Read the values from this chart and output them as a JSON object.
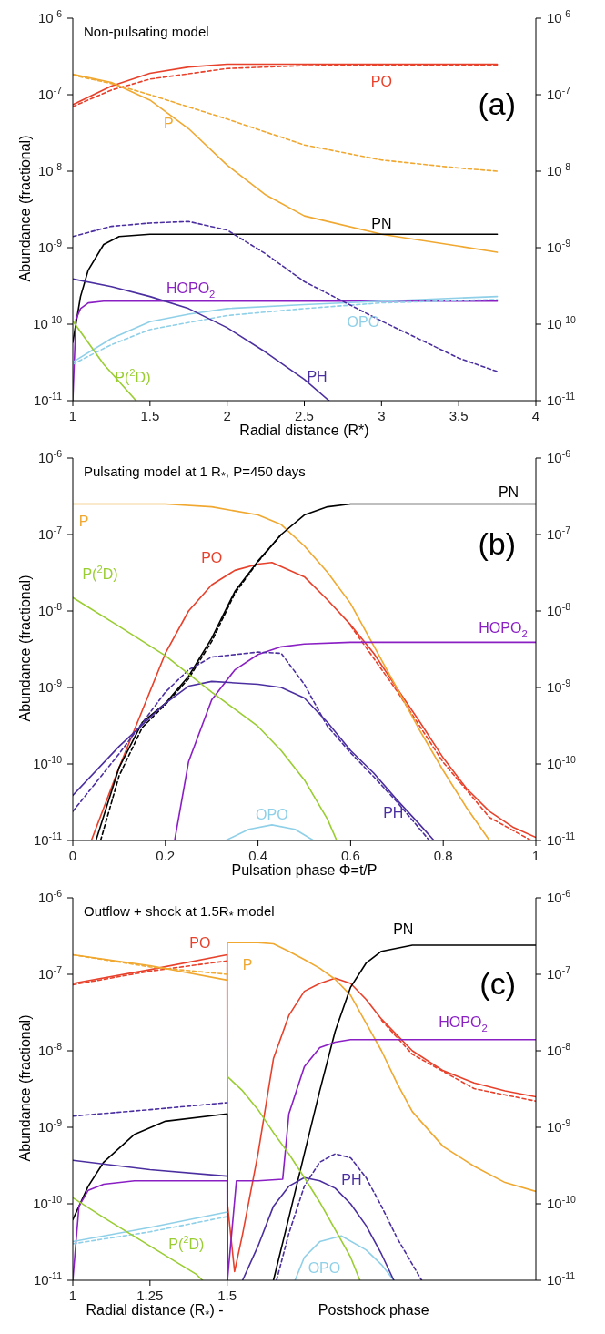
{
  "chart_data": [
    {
      "type": "line",
      "title": "Non-pulsating model",
      "xlabel": "Radial distance (R*)",
      "ylabel": "Abundance (fractional)",
      "annotations": [
        "(a)"
      ],
      "log": true,
      "marker": "none",
      "xlim": [
        1,
        4
      ],
      "xticks": [
        1,
        1.5,
        2,
        2.5,
        3,
        3.5,
        4
      ],
      "ylim": [
        1e-11,
        1e-06
      ],
      "yticks": [
        {
          "value": 1e-11,
          "label": "10$^{-11}$"
        },
        {
          "value": 1e-10,
          "label": "10$^{-10}$"
        },
        {
          "value": 1e-09,
          "label": "10$^{-9}$"
        },
        {
          "value": 1e-08,
          "label": "10$^{-8}$"
        },
        {
          "value": 1e-07,
          "label": "10$^{-7}$"
        },
        {
          "value": 1e-06,
          "label": "10$^{-6}$"
        }
      ],
      "series": [
        {
          "name": "PO",
          "color": "#e8412b",
          "line_style": "solid",
          "x": [
            1,
            1.25,
            1.5,
            1.75,
            2,
            2.5,
            3,
            3.5,
            3.75
          ],
          "values": [
            7.4e-08,
            1.3e-07,
            1.9e-07,
            2.3e-07,
            2.5e-07,
            2.5e-07,
            2.5e-07,
            2.5e-07,
            2.5e-07
          ]
        },
        {
          "color": "#e8412b",
          "line_style": "dashed",
          "x": [
            1,
            1.25,
            1.5,
            2,
            2.5,
            3,
            3.75
          ],
          "values": [
            7e-08,
            1.15e-07,
            1.6e-07,
            2.2e-07,
            2.4e-07,
            2.45e-07,
            2.45e-07
          ]
        },
        {
          "name": "P",
          "color": "#f0a830",
          "line_style": "solid",
          "x": [
            1,
            1.25,
            1.5,
            1.75,
            2,
            2.25,
            2.5,
            3,
            3.5,
            3.75
          ],
          "values": [
            1.85e-07,
            1.45e-07,
            8.5e-08,
            3.6e-08,
            1.2e-08,
            4.9e-09,
            2.6e-09,
            1.5e-09,
            1.05e-09,
            8.7e-10
          ]
        },
        {
          "color": "#f0a830",
          "line_style": "dashed",
          "x": [
            1,
            1.25,
            1.5,
            2,
            2.5,
            3,
            3.5,
            3.75
          ],
          "values": [
            1.8e-07,
            1.4e-07,
            1e-07,
            4.8e-08,
            2.2e-08,
            1.4e-08,
            1.1e-08,
            1e-08
          ]
        },
        {
          "name": "PN",
          "color": "#000000",
          "line_style": "solid",
          "x": [
            1,
            1.05,
            1.1,
            1.2,
            1.3,
            1.5,
            2,
            3,
            3.75
          ],
          "values": [
            5.8e-11,
            2.3e-10,
            5.1e-10,
            1.1e-09,
            1.4e-09,
            1.5e-09,
            1.5e-09,
            1.5e-09,
            1.5e-09
          ]
        },
        {
          "name": "HOPO$_{2}$",
          "color": "#8a1fc4",
          "line_style": "solid",
          "x": [
            1,
            1.02,
            1.05,
            1.1,
            1.2,
            1.5,
            2,
            3,
            3.75
          ],
          "values": [
            1e-11,
            1.15e-10,
            1.6e-10,
            1.9e-10,
            2e-10,
            2e-10,
            2e-10,
            2e-10,
            2e-10
          ]
        },
        {
          "name": "OPO",
          "color": "#8fd0e8",
          "line_style": "solid",
          "x": [
            1,
            1.25,
            1.5,
            1.75,
            2,
            2.5,
            3,
            3.5,
            3.75
          ],
          "values": [
            3.2e-11,
            6.5e-11,
            1.08e-10,
            1.35e-10,
            1.6e-10,
            1.8e-10,
            2e-10,
            2.2e-10,
            2.3e-10
          ]
        },
        {
          "color": "#8fd0e8",
          "line_style": "dashed",
          "x": [
            1,
            1.25,
            1.5,
            2,
            2.5,
            3,
            3.75
          ],
          "values": [
            3e-11,
            5.4e-11,
            8.5e-11,
            1.3e-10,
            1.6e-10,
            1.9e-10,
            2.1e-10
          ]
        },
        {
          "name": "PH",
          "color": "#4b2fa0",
          "line_style": "solid",
          "x": [
            1,
            1.25,
            1.5,
            1.75,
            2,
            2.25,
            2.5,
            2.66
          ],
          "values": [
            3.9e-10,
            3.1e-10,
            2.3e-10,
            1.6e-10,
            9e-11,
            4.3e-11,
            1.9e-11,
            1e-11
          ]
        },
        {
          "color": "#4b2fa0",
          "line_style": "dashed",
          "x": [
            1,
            1.25,
            1.5,
            1.75,
            2,
            2.25,
            2.5,
            3,
            3.25,
            3.5,
            3.75
          ],
          "values": [
            1.4e-09,
            1.9e-09,
            2.1e-09,
            2.2e-09,
            1.7e-09,
            8.3e-10,
            3.6e-10,
            1.1e-10,
            6.3e-11,
            3.6e-11,
            2.4e-11
          ]
        },
        {
          "name": "P($^{2}$D)",
          "color": "#9acd32",
          "line_style": "solid",
          "x": [
            1,
            1.2,
            1.41
          ],
          "values": [
            1.1e-10,
            3e-11,
            1e-11
          ]
        }
      ]
    },
    {
      "type": "line",
      "title": "Pulsating model at 1 R$_{*}$, P=450 days",
      "xlabel": "Pulsation phase Φ=t/P",
      "ylabel": "Abundance (fractional)",
      "annotations": [
        "(b)"
      ],
      "log": true,
      "marker": "none",
      "xlim": [
        0,
        1
      ],
      "xticks": [
        0,
        0.2,
        0.4,
        0.6,
        0.8,
        1
      ],
      "ylim": [
        1e-11,
        1e-06
      ],
      "yticks": [
        {
          "value": 1e-11,
          "label": "10$^{-11}$"
        },
        {
          "value": 1e-10,
          "label": "10$^{-10}$"
        },
        {
          "value": 1e-09,
          "label": "10$^{-9}$"
        },
        {
          "value": 1e-08,
          "label": "10$^{-8}$"
        },
        {
          "value": 1e-07,
          "label": "10$^{-7}$"
        },
        {
          "value": 1e-06,
          "label": "10$^{-6}$"
        }
      ],
      "series": [
        {
          "name": "PO",
          "color": "#e8412b",
          "line_style": "solid",
          "x": [
            0.04,
            0.1,
            0.15,
            0.2,
            0.25,
            0.3,
            0.35,
            0.4,
            0.43,
            0.5,
            0.55,
            0.6,
            0.65,
            0.7,
            0.75,
            0.8,
            0.85,
            0.9,
            0.95,
            1
          ],
          "values": [
            1e-11,
            9e-11,
            5e-10,
            2.8e-09,
            1e-08,
            2.2e-08,
            3.4e-08,
            4.1e-08,
            4.3e-08,
            2.8e-08,
            1.4e-08,
            6.6e-09,
            2.8e-09,
            9.8e-10,
            3.5e-10,
            1.2e-10,
            4.8e-11,
            2.4e-11,
            1.5e-11,
            1.1e-11
          ]
        },
        {
          "color": "#e8412b",
          "line_style": "dashed",
          "x": [
            0.6,
            0.7,
            0.8,
            0.9,
            0.99
          ],
          "values": [
            6.4e-09,
            9e-10,
            1.05e-10,
            2e-11,
            1e-11
          ]
        },
        {
          "name": "P",
          "color": "#f0a830",
          "line_style": "solid",
          "x": [
            0,
            0.2,
            0.3,
            0.4,
            0.45,
            0.5,
            0.55,
            0.6,
            0.65,
            0.7,
            0.75,
            0.8,
            0.85,
            0.9
          ],
          "values": [
            2.5e-07,
            2.5e-07,
            2.3e-07,
            1.8e-07,
            1.35e-07,
            7.1e-08,
            3.2e-08,
            1.25e-08,
            3.5e-09,
            9.8e-10,
            2.7e-10,
            8.2e-11,
            2.7e-11,
            1e-11
          ]
        },
        {
          "name": "PN",
          "color": "#000000",
          "line_style": "solid",
          "x": [
            0.05,
            0.1,
            0.15,
            0.2,
            0.25,
            0.3,
            0.35,
            0.4,
            0.45,
            0.5,
            0.55,
            0.6,
            0.7,
            0.8,
            1
          ],
          "values": [
            1e-11,
            9e-11,
            3.5e-10,
            6.2e-10,
            1.4e-09,
            4.4e-09,
            1.8e-08,
            4.5e-08,
            1e-07,
            1.8e-07,
            2.3e-07,
            2.5e-07,
            2.5e-07,
            2.5e-07,
            2.5e-07
          ]
        },
        {
          "color": "#000000",
          "line_style": "dashed",
          "x": [
            0.06,
            0.1,
            0.15,
            0.2,
            0.25,
            0.3,
            0.35,
            0.4,
            0.45
          ],
          "values": [
            1e-11,
            7e-11,
            3e-10,
            6e-10,
            1.3e-09,
            4e-09,
            1.7e-08,
            4.4e-08,
            1e-07
          ]
        },
        {
          "name": "HOPO$_{2}$",
          "color": "#8a1fc4",
          "line_style": "solid",
          "x": [
            0.22,
            0.25,
            0.3,
            0.35,
            0.4,
            0.45,
            0.5,
            0.6,
            1
          ],
          "values": [
            1e-11,
            1.07e-10,
            6.9e-10,
            1.7e-09,
            2.7e-09,
            3.4e-09,
            3.7e-09,
            3.9e-09,
            3.9e-09
          ]
        },
        {
          "name": "OPO",
          "color": "#8fd0e8",
          "line_style": "solid",
          "x": [
            0.33,
            0.38,
            0.43,
            0.48,
            0.52
          ],
          "values": [
            1e-11,
            1.4e-11,
            1.6e-11,
            1.4e-11,
            1e-11
          ]
        },
        {
          "name": "PH",
          "color": "#4b2fa0",
          "line_style": "solid",
          "x": [
            0,
            0.1,
            0.2,
            0.25,
            0.3,
            0.4,
            0.45,
            0.5,
            0.55,
            0.6,
            0.65,
            0.7,
            0.75,
            0.78
          ],
          "values": [
            3.9e-11,
            1.7e-10,
            6.2e-10,
            1.04e-09,
            1.2e-09,
            1.1e-09,
            1e-09,
            7.3e-10,
            3.5e-10,
            1.5e-10,
            7.6e-11,
            3.4e-11,
            1.6e-11,
            1e-11
          ]
        },
        {
          "color": "#4b2fa0",
          "line_style": "dashed",
          "x": [
            0,
            0.1,
            0.2,
            0.25,
            0.3,
            0.4,
            0.45,
            0.5,
            0.55,
            0.6,
            0.65,
            0.7,
            0.75,
            0.77
          ],
          "values": [
            2.4e-11,
            1.36e-10,
            8.7e-10,
            1.7e-09,
            2.5e-09,
            2.9e-09,
            2.8e-09,
            1.1e-09,
            3.1e-10,
            1.4e-10,
            6.8e-11,
            3.2e-11,
            1.4e-11,
            1e-11
          ]
        },
        {
          "name": "P($^{2}$D)",
          "color": "#9acd32",
          "line_style": "solid",
          "x": [
            0,
            0.1,
            0.2,
            0.3,
            0.4,
            0.45,
            0.5,
            0.55,
            0.57
          ],
          "values": [
            1.5e-08,
            6.3e-09,
            2.6e-09,
            8.7e-10,
            3.1e-10,
            1.5e-10,
            6.2e-11,
            1.9e-11,
            1e-11
          ]
        }
      ]
    },
    {
      "type": "line",
      "title": "Outflow + shock at 1.5R$_{*}$ model",
      "xlabel": "Radial distance (R$_{*}$) -",
      "ylabel": "Abundance (fractional)",
      "annotations": [
        "(c)",
        "Postshock phase"
      ],
      "log": true,
      "marker": "none",
      "xlim": [
        1,
        2.5
      ],
      "xticks": [
        1,
        1.25,
        1.5
      ],
      "ylim": [
        1e-11,
        1e-06
      ],
      "yticks": [
        {
          "value": 1e-11,
          "label": "10$^{-11}$"
        },
        {
          "value": 1e-10,
          "label": "10$^{-10}$"
        },
        {
          "value": 1e-09,
          "label": "10$^{-9}$"
        },
        {
          "value": 1e-08,
          "label": "10$^{-8}$"
        },
        {
          "value": 1e-07,
          "label": "10$^{-7}$"
        },
        {
          "value": 1e-06,
          "label": "10$^{-6}$"
        }
      ],
      "series": [
        {
          "name": "PO",
          "color": "#e8412b",
          "line_style": "solid",
          "x": [
            1,
            1.25,
            1.5,
            1.501,
            1.524,
            1.55,
            1.6,
            1.65,
            1.7,
            1.75,
            1.8,
            1.85,
            1.9,
            1.95,
            2,
            2.1,
            2.2,
            2.3,
            2.4,
            2.5
          ],
          "values": [
            7.6e-08,
            1.15e-07,
            1.8e-07,
            1e-10,
            1.3e-11,
            4e-11,
            4.5e-10,
            7.9e-09,
            2.9e-08,
            6e-08,
            7.6e-08,
            8.9e-08,
            7.6e-08,
            4.7e-08,
            2.6e-08,
            1e-08,
            5.5e-09,
            3.8e-09,
            3e-09,
            2.5e-09
          ]
        },
        {
          "color": "#e8412b",
          "line_style": "dashed",
          "x": [
            1,
            1.25,
            1.5,
            1.9,
            2,
            2.1,
            2.3,
            2.5
          ],
          "values": [
            7.3e-08,
            1.1e-07,
            1.5e-07,
            null,
            2.5e-08,
            9e-09,
            3.2e-09,
            2.2e-09
          ]
        },
        {
          "name": "P",
          "color": "#f0a830",
          "line_style": "solid",
          "x": [
            1,
            1.25,
            1.5,
            1.501,
            1.6,
            1.65,
            1.7,
            1.75,
            1.8,
            1.85,
            1.9,
            1.95,
            2,
            2.05,
            2.1,
            2.2,
            2.3,
            2.4,
            2.5
          ],
          "values": [
            1.8e-07,
            1.3e-07,
            8.4e-08,
            2.6e-07,
            2.6e-07,
            2.5e-07,
            2e-07,
            1.56e-07,
            1.2e-07,
            8.6e-08,
            5.3e-08,
            2.3e-08,
            1e-08,
            3.8e-09,
            1.6e-09,
            5.6e-10,
            3.1e-10,
            1.9e-10,
            1.45e-10
          ]
        },
        {
          "color": "#f0a830",
          "line_style": "dashed",
          "x": [
            1,
            1.25,
            1.5
          ],
          "values": [
            1.8e-07,
            1.25e-07,
            1e-07
          ]
        },
        {
          "name": "PN",
          "color": "#000000",
          "line_style": "solid",
          "x": [
            1,
            1.05,
            1.1,
            1.2,
            1.3,
            1.5,
            1.501,
            1.6,
            1.65,
            1.7,
            1.75,
            1.8,
            1.85,
            1.9,
            1.95,
            2,
            2.1,
            2.3,
            2.5
          ],
          "values": [
            6.2e-11,
            1.7e-10,
            3.5e-10,
            8.1e-10,
            1.2e-09,
            1.5e-09,
            1e-11,
            null,
            1e-11,
            6.6e-11,
            4.5e-10,
            3e-09,
            1.8e-08,
            6.8e-08,
            1.4e-07,
            2e-07,
            2.4e-07,
            2.4e-07,
            2.4e-07
          ]
        },
        {
          "name": "HOPO$_{2}$",
          "color": "#8a1fc4",
          "line_style": "solid",
          "x": [
            1,
            1.02,
            1.05,
            1.1,
            1.2,
            1.5,
            1.501,
            1.53,
            1.6,
            1.68,
            1.7,
            1.75,
            1.8,
            1.85,
            1.9,
            2.5
          ],
          "values": [
            1e-11,
            9.3e-11,
            1.5e-10,
            1.8e-10,
            2e-10,
            2e-10,
            1e-11,
            2e-10,
            2e-10,
            2.1e-10,
            1.5e-09,
            6.2e-09,
            1.1e-08,
            1.3e-08,
            1.4e-08,
            1.4e-08
          ]
        },
        {
          "name": "OPO",
          "color": "#8fd0e8",
          "line_style": "solid",
          "x": [
            1,
            1.25,
            1.5,
            1.6,
            1.72,
            1.75,
            1.8,
            1.87,
            1.95,
            2,
            2.04
          ],
          "values": [
            3.2e-11,
            4.9e-11,
            7.8e-11,
            null,
            1e-11,
            2e-11,
            3.2e-11,
            3.8e-11,
            2.5e-11,
            1.6e-11,
            1e-11
          ]
        },
        {
          "color": "#8fd0e8",
          "line_style": "dashed",
          "x": [
            1,
            1.25,
            1.5
          ],
          "values": [
            3e-11,
            4.3e-11,
            6.8e-11
          ]
        },
        {
          "name": "PH",
          "color": "#4b2fa0",
          "line_style": "solid",
          "x": [
            1,
            1.25,
            1.5,
            1.52,
            1.55,
            1.6,
            1.65,
            1.7,
            1.75,
            1.8,
            1.85,
            1.9,
            1.95,
            2,
            2.04
          ],
          "values": [
            3.7e-10,
            2.8e-10,
            2.3e-10,
            null,
            1e-11,
            2.8e-11,
            9.3e-11,
            1.7e-10,
            2.2e-10,
            2e-10,
            1.6e-10,
            1e-10,
            5.2e-11,
            2.2e-11,
            1e-11
          ]
        },
        {
          "color": "#4b2fa0",
          "line_style": "dashed",
          "x": [
            1,
            1.25,
            1.5,
            1.6,
            1.66,
            1.7,
            1.75,
            1.8,
            1.85,
            1.9,
            1.95,
            2,
            2.05,
            2.13
          ],
          "values": [
            1.4e-09,
            1.7e-09,
            2.1e-09,
            null,
            1e-11,
            4.1e-11,
            1.7e-10,
            3.5e-10,
            4.5e-10,
            4e-10,
            2.2e-10,
            9.3e-11,
            3.6e-11,
            1e-11
          ]
        },
        {
          "name": "P($^{2}$D)",
          "color": "#9acd32",
          "line_style": "solid",
          "x": [
            1,
            1.1,
            1.25,
            1.4,
            1.42,
            1.45,
            1.501,
            1.55,
            1.6,
            1.65,
            1.7,
            1.75,
            1.8,
            1.85,
            1.9,
            1.93
          ],
          "values": [
            1.2e-10,
            6.6e-11,
            2.8e-11,
            1.2e-11,
            1e-11,
            null,
            4.6e-09,
            3e-09,
            1.7e-09,
            8.5e-10,
            4.5e-10,
            2.2e-10,
            1.05e-10,
            4.6e-11,
            2e-11,
            1e-11
          ]
        }
      ]
    }
  ]
}
